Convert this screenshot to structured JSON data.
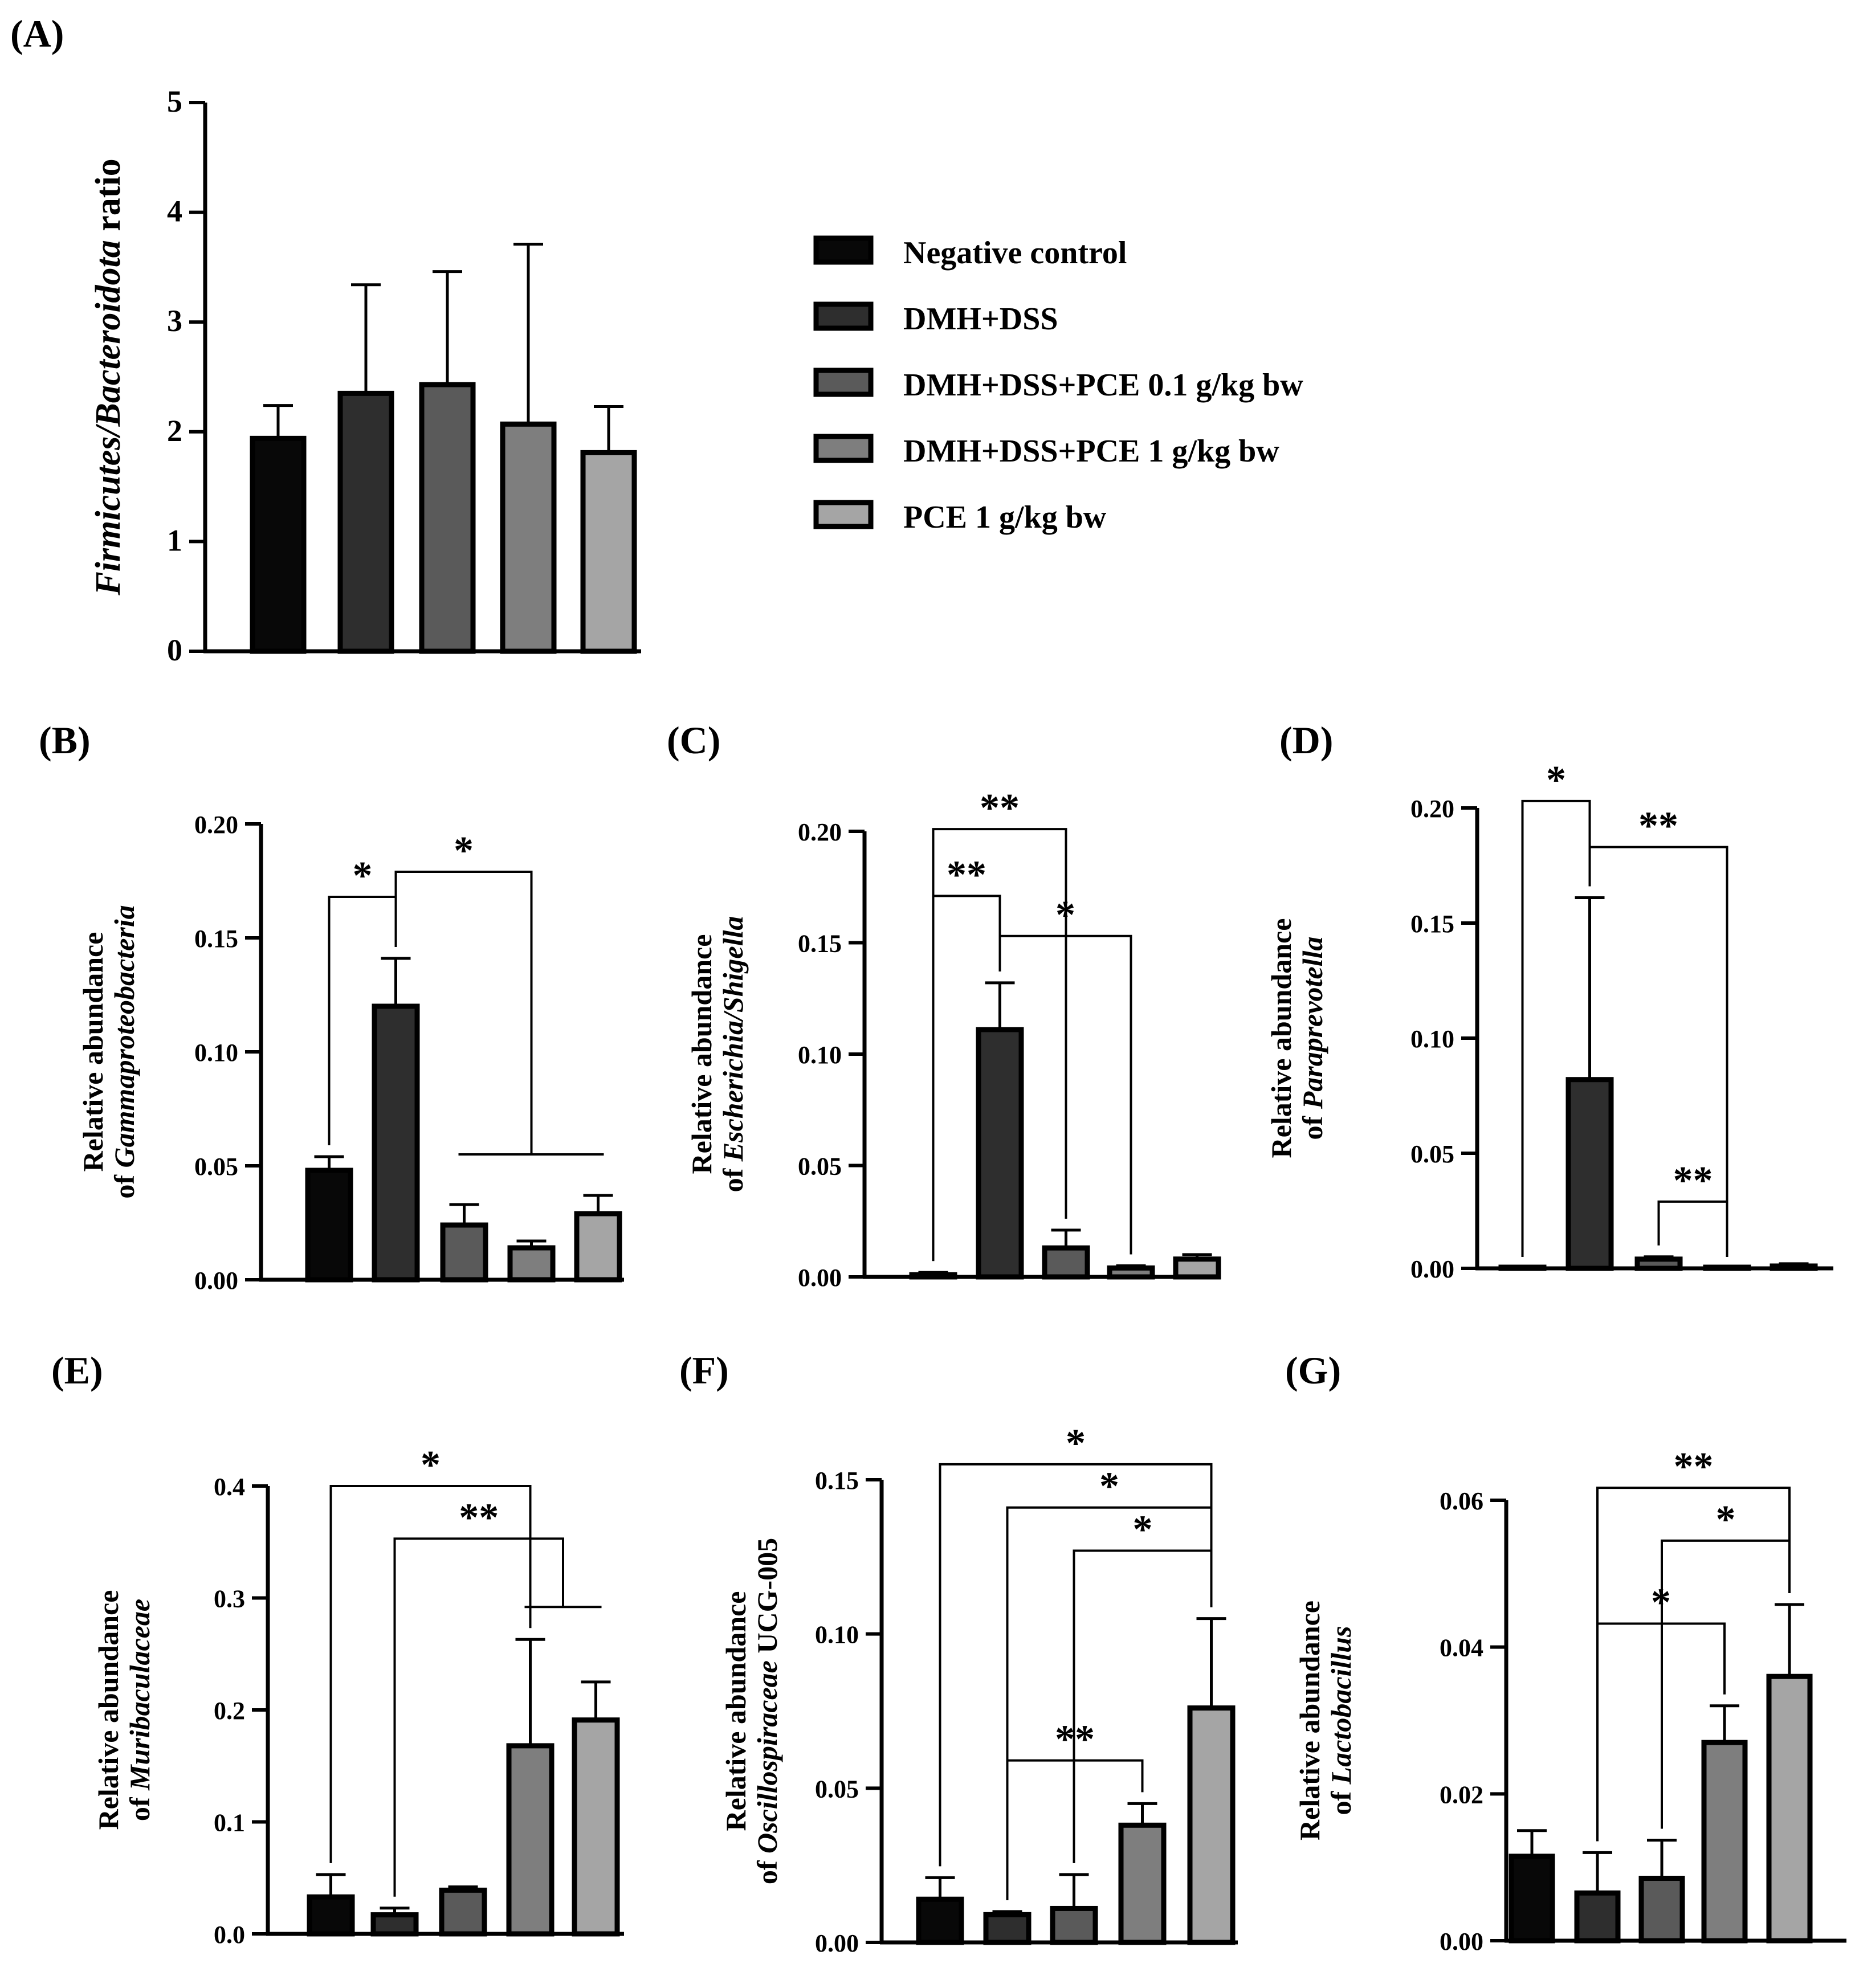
{
  "legend": {
    "entries": [
      {
        "label": "Negative control",
        "color": "#080808"
      },
      {
        "label": "DMH+DSS",
        "color": "#2e2e2e"
      },
      {
        "label": "DMH+DSS+PCE 0.1 g/kg bw",
        "color": "#5a5a5a"
      },
      {
        "label": "DMH+DSS+PCE 1 g/kg bw",
        "color": "#7e7e7e"
      },
      {
        "label": "PCE 1 g/kg bw",
        "color": "#a5a5a5"
      }
    ]
  },
  "chart_data": [
    {
      "panel": "(A)",
      "type": "bar",
      "categories": [
        "Negative control",
        "DMH+DSS",
        "DMH+DSS+PCE 0.1 g/kg bw",
        "DMH+DSS+PCE 1 g/kg bw",
        "PCE 1 g/kg bw"
      ],
      "values": [
        1.94,
        2.35,
        2.43,
        2.07,
        1.81
      ],
      "errors": [
        0.3,
        0.99,
        1.03,
        1.64,
        0.42
      ],
      "ylabel_pre": "",
      "ylabel_italic": "Firmicutes/Bacteroidota",
      "ylabel_post": " ratio",
      "ylim": [
        0,
        5
      ],
      "yticks": [
        0,
        1,
        2,
        3,
        4,
        5
      ],
      "ytick_labels": [
        "0",
        "1",
        "2",
        "3",
        "4",
        "5"
      ],
      "annotations": []
    },
    {
      "panel": "(B)",
      "type": "bar",
      "categories": [
        "Negative control",
        "DMH+DSS",
        "DMH+DSS+PCE 0.1 g/kg bw",
        "DMH+DSS+PCE 1 g/kg bw",
        "PCE 1 g/kg bw"
      ],
      "values": [
        0.048,
        0.12,
        0.024,
        0.014,
        0.029
      ],
      "errors": [
        0.006,
        0.021,
        0.009,
        0.003,
        0.008
      ],
      "ylabel_line1": "Relative abundance",
      "ylabel_pre": "of ",
      "ylabel_italic": "Gammaproteobacteria",
      "ylabel_post": "",
      "ylim": [
        0,
        0.2
      ],
      "yticks": [
        0,
        0.05,
        0.1,
        0.15,
        0.2
      ],
      "ytick_labels": [
        "0.00",
        "0.05",
        "0.10",
        "0.15",
        "0.20"
      ],
      "annotations": [
        {
          "from": 0,
          "to": 1,
          "level": 0.168,
          "text": "*"
        },
        {
          "from": 1,
          "to": 3,
          "level": 0.179,
          "text": "*",
          "group": [
            2,
            4
          ],
          "group_level": 0.055
        }
      ]
    },
    {
      "panel": "(C)",
      "type": "bar",
      "categories": [
        "Negative control",
        "DMH+DSS",
        "DMH+DSS+PCE 0.1 g/kg bw",
        "DMH+DSS+PCE 1 g/kg bw",
        "PCE 1 g/kg bw"
      ],
      "values": [
        0.001,
        0.111,
        0.013,
        0.004,
        0.008
      ],
      "errors": [
        0.001,
        0.021,
        0.008,
        0.001,
        0.002
      ],
      "ylabel_line1": "Relative abundance",
      "ylabel_pre": "of ",
      "ylabel_italic": "Escherichia/Shigella",
      "ylabel_post": "",
      "ylim": [
        0,
        0.2
      ],
      "yticks": [
        0,
        0.05,
        0.1,
        0.15,
        0.2
      ],
      "ytick_labels": [
        "0.00",
        "0.05",
        "0.10",
        "0.15",
        "0.20"
      ],
      "annotations": [
        {
          "from": 0,
          "to": 2,
          "level": 0.201,
          "text": "**"
        },
        {
          "from": 0,
          "to": 1,
          "level": 0.171,
          "text": "**"
        },
        {
          "from": 1,
          "to": 3,
          "level": 0.153,
          "text": "*"
        }
      ]
    },
    {
      "panel": "(D)",
      "type": "bar",
      "categories": [
        "Negative control",
        "DMH+DSS",
        "DMH+DSS+PCE 0.1 g/kg bw",
        "DMH+DSS+PCE 1 g/kg bw",
        "PCE 1 g/kg bw"
      ],
      "values": [
        0.0,
        0.082,
        0.004,
        0.0,
        0.001
      ],
      "errors": [
        0.0,
        0.079,
        0.001,
        0.0,
        0.001
      ],
      "ylabel_line1": "Relative abundance",
      "ylabel_pre": "of ",
      "ylabel_italic": "Paraprevotella",
      "ylabel_post": "",
      "ylim": [
        0,
        0.2
      ],
      "yticks": [
        0,
        0.05,
        0.1,
        0.15,
        0.2
      ],
      "ytick_labels": [
        "0.00",
        "0.05",
        "0.10",
        "0.15",
        "0.20"
      ],
      "annotations": [
        {
          "from": 0,
          "to": 1,
          "level": 0.203,
          "text": "*"
        },
        {
          "from": 1,
          "to": 3,
          "level": 0.183,
          "text": "**"
        },
        {
          "from": 2,
          "to": 3,
          "level": 0.029,
          "text": "**"
        }
      ]
    },
    {
      "panel": "(E)",
      "type": "bar",
      "categories": [
        "Negative control",
        "DMH+DSS",
        "DMH+DSS+PCE 0.1 g/kg bw",
        "DMH+DSS+PCE 1 g/kg bw",
        "PCE 1 g/kg bw"
      ],
      "values": [
        0.033,
        0.017,
        0.039,
        0.168,
        0.191
      ],
      "errors": [
        0.02,
        0.006,
        0.003,
        0.095,
        0.034
      ],
      "ylabel_line1": "Relative abundance",
      "ylabel_pre": "of ",
      "ylabel_italic": "Muribaculaceae",
      "ylabel_post": "",
      "ylim": [
        0,
        0.4
      ],
      "yticks": [
        0,
        0.1,
        0.2,
        0.3,
        0.4
      ],
      "ytick_labels": [
        "0.0",
        "0.1",
        "0.2",
        "0.3",
        "0.4"
      ],
      "annotations": [
        {
          "from": 0,
          "to": 3,
          "level": 0.4,
          "text": "*"
        },
        {
          "from": 1,
          "to": 3.5,
          "level": 0.353,
          "text": "**",
          "group": [
            3,
            4
          ],
          "group_level": 0.292
        }
      ]
    },
    {
      "panel": "(F)",
      "type": "bar",
      "categories": [
        "Negative control",
        "DMH+DSS",
        "DMH+DSS+PCE 0.1 g/kg bw",
        "DMH+DSS+PCE 1 g/kg bw",
        "PCE 1 g/kg bw"
      ],
      "values": [
        0.014,
        0.009,
        0.011,
        0.038,
        0.076
      ],
      "errors": [
        0.007,
        0.001,
        0.011,
        0.007,
        0.029
      ],
      "ylabel_line1": "Relative abundance",
      "ylabel_pre": "of ",
      "ylabel_italic": "Oscillospiraceae",
      "ylabel_post": " UCG-005",
      "ylim": [
        0,
        0.15
      ],
      "yticks": [
        0,
        0.05,
        0.1,
        0.15
      ],
      "ytick_labels": [
        "0.00",
        "0.05",
        "0.10",
        "0.15"
      ],
      "annotations": [
        {
          "from": 0,
          "to": 4,
          "level": 0.155,
          "text": "*"
        },
        {
          "from": 1,
          "to": 4,
          "level": 0.141,
          "text": "*"
        },
        {
          "from": 2,
          "to": 4,
          "level": 0.127,
          "text": "*"
        },
        {
          "from": 1,
          "to": 3,
          "level": 0.059,
          "text": "**"
        }
      ]
    },
    {
      "panel": "(G)",
      "type": "bar",
      "categories": [
        "Negative control",
        "DMH+DSS",
        "DMH+DSS+PCE 0.1 g/kg bw",
        "DMH+DSS+PCE 1 g/kg bw",
        "PCE 1 g/kg bw"
      ],
      "values": [
        0.0115,
        0.0065,
        0.0085,
        0.027,
        0.036
      ],
      "errors": [
        0.0035,
        0.0055,
        0.0052,
        0.005,
        0.0098
      ],
      "ylabel_line1": "Relative abundance",
      "ylabel_pre": "of ",
      "ylabel_italic": "Lactobacillus",
      "ylabel_post": "",
      "ylim": [
        0,
        0.06
      ],
      "yticks": [
        0,
        0.02,
        0.04,
        0.06
      ],
      "ytick_labels": [
        "0.00",
        "0.02",
        "0.04",
        "0.06"
      ],
      "annotations": [
        {
          "from": 1,
          "to": 4,
          "level": 0.0617,
          "text": "**"
        },
        {
          "from": 2,
          "to": 4,
          "level": 0.0545,
          "text": "*"
        },
        {
          "from": 1,
          "to": 3,
          "level": 0.0432,
          "text": "*"
        }
      ]
    }
  ]
}
